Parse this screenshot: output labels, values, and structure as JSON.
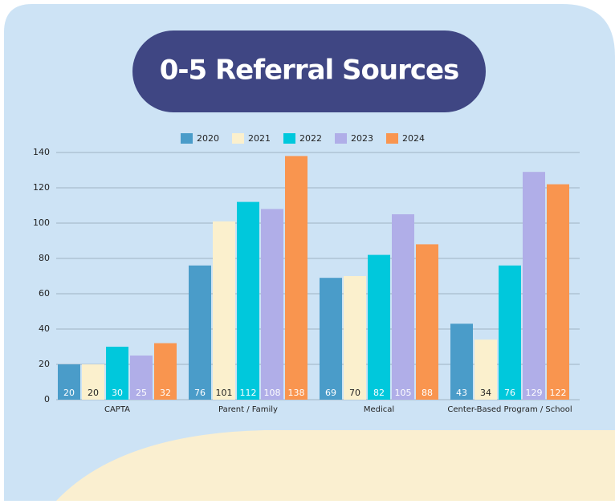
{
  "chart_data": {
    "type": "bar",
    "title": "0-5 Referral Sources",
    "categories": [
      "CAPTA",
      "Parent / Family",
      "Medical",
      "Center-Based Program / School"
    ],
    "series": [
      {
        "name": "2020",
        "color": "#4a9cc9",
        "values": [
          20,
          76,
          69,
          43
        ]
      },
      {
        "name": "2021",
        "color": "#fbf0cd",
        "values": [
          20,
          101,
          70,
          34
        ]
      },
      {
        "name": "2022",
        "color": "#00c8dc",
        "values": [
          30,
          112,
          82,
          76
        ]
      },
      {
        "name": "2023",
        "color": "#b0aee8",
        "values": [
          25,
          108,
          105,
          129
        ]
      },
      {
        "name": "2024",
        "color": "#f9954f",
        "values": [
          32,
          138,
          88,
          122
        ]
      }
    ],
    "ylim": [
      0,
      140
    ],
    "yticks": [
      0,
      20,
      40,
      60,
      80,
      100,
      120,
      140
    ],
    "grid": true,
    "legend": "top"
  }
}
